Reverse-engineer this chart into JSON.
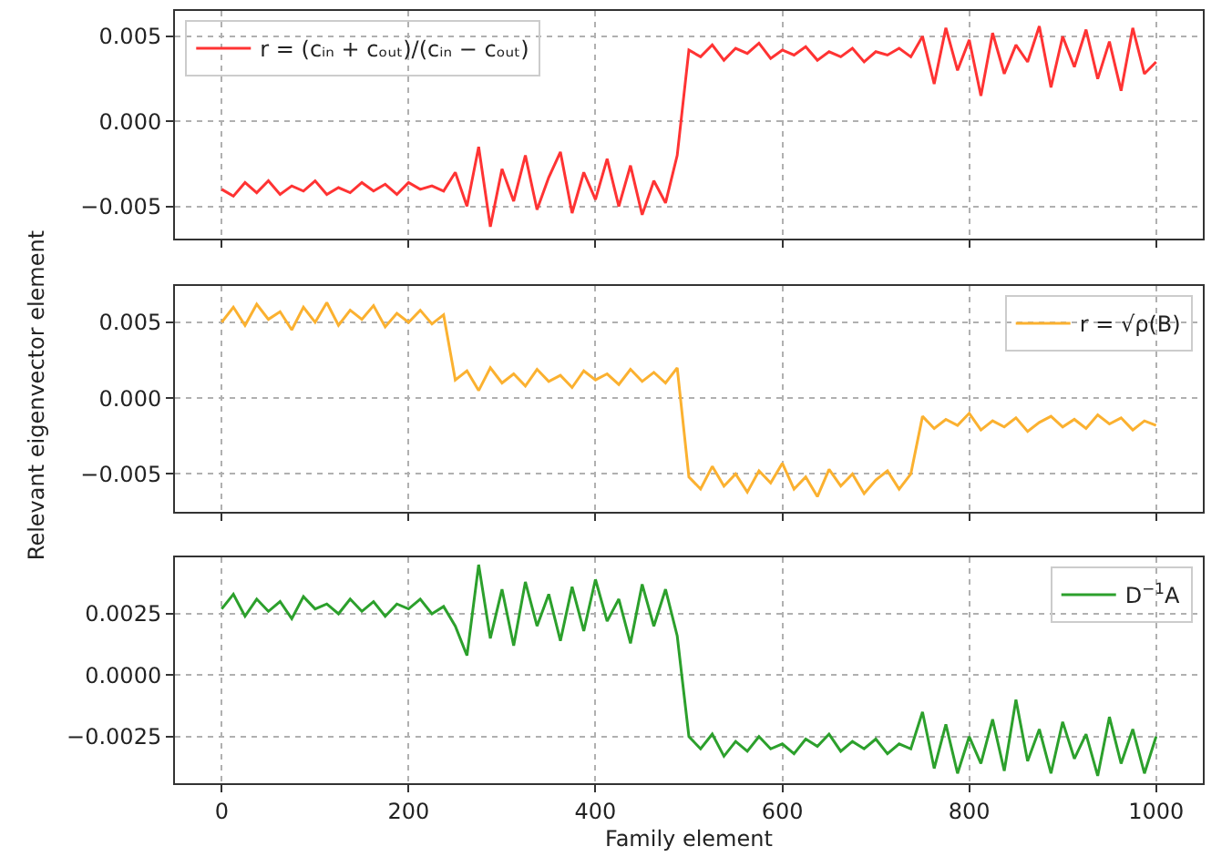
{
  "chart_data": [
    {
      "type": "line",
      "x": [
        0,
        12.5,
        25,
        37.5,
        50,
        62.5,
        75,
        87.5,
        100,
        112.5,
        125,
        137.5,
        150,
        162.5,
        175,
        187.5,
        200,
        212.5,
        225,
        237.5,
        250,
        262.5,
        275,
        287.5,
        300,
        312.5,
        325,
        337.5,
        350,
        362.5,
        375,
        387.5,
        400,
        412.5,
        425,
        437.5,
        450,
        462.5,
        475,
        487.5,
        500,
        512.5,
        525,
        537.5,
        550,
        562.5,
        575,
        587.5,
        600,
        612.5,
        625,
        637.5,
        650,
        662.5,
        675,
        687.5,
        700,
        712.5,
        725,
        737.5,
        750,
        762.5,
        775,
        787.5,
        800,
        812.5,
        825,
        837.5,
        850,
        862.5,
        875,
        887.5,
        900,
        912.5,
        925,
        937.5,
        950,
        962.5,
        975,
        987.5,
        1000
      ],
      "series": [
        {
          "name": "r = (cᵢₙ + cₒᵤₜ)/(cᵢₙ − cₒᵤₜ)",
          "color": "#ff3333",
          "values": [
            -0.004,
            -0.0044,
            -0.0036,
            -0.0042,
            -0.0035,
            -0.0043,
            -0.0038,
            -0.0041,
            -0.0035,
            -0.0043,
            -0.0039,
            -0.0042,
            -0.0036,
            -0.0041,
            -0.0037,
            -0.0043,
            -0.0036,
            -0.004,
            -0.0038,
            -0.0041,
            -0.003,
            -0.005,
            -0.0015,
            -0.0062,
            -0.0028,
            -0.0047,
            -0.002,
            -0.0052,
            -0.0033,
            -0.0018,
            -0.0054,
            -0.003,
            -0.0046,
            -0.0022,
            -0.005,
            -0.0026,
            -0.0055,
            -0.0035,
            -0.0048,
            -0.002,
            0.0042,
            0.0038,
            0.0045,
            0.0036,
            0.0043,
            0.004,
            0.0046,
            0.0037,
            0.0042,
            0.0039,
            0.0044,
            0.0036,
            0.0041,
            0.0038,
            0.0043,
            0.0035,
            0.0041,
            0.0039,
            0.0043,
            0.0038,
            0.005,
            0.0022,
            0.0055,
            0.003,
            0.0048,
            0.0015,
            0.0052,
            0.0028,
            0.0045,
            0.0035,
            0.0056,
            0.002,
            0.005,
            0.0032,
            0.0054,
            0.0025,
            0.0047,
            0.0018,
            0.0055,
            0.0028,
            0.0035
          ]
        }
      ],
      "xlim": [
        -50,
        1050
      ],
      "ylim": [
        -0.0069,
        0.0065
      ],
      "yticks": [
        {
          "value": -0.005,
          "label": "−0.005"
        },
        {
          "value": 0,
          "label": "0.000"
        },
        {
          "value": 0.005,
          "label": "0.005"
        }
      ],
      "xticks": [
        {
          "value": 0,
          "label": null
        },
        {
          "value": 200,
          "label": null
        },
        {
          "value": 400,
          "label": null
        },
        {
          "value": 600,
          "label": null
        },
        {
          "value": 800,
          "label": null
        },
        {
          "value": 1000,
          "label": null
        }
      ],
      "grid": true,
      "legend": "top left",
      "tick_labels": "y",
      "line_style": "solid"
    },
    {
      "type": "line",
      "ylabel": "Relevant eigenvector element",
      "x": [
        0,
        12.5,
        25,
        37.5,
        50,
        62.5,
        75,
        87.5,
        100,
        112.5,
        125,
        137.5,
        150,
        162.5,
        175,
        187.5,
        200,
        212.5,
        225,
        237.5,
        250,
        262.5,
        275,
        287.5,
        300,
        312.5,
        325,
        337.5,
        350,
        362.5,
        375,
        387.5,
        400,
        412.5,
        425,
        437.5,
        450,
        462.5,
        475,
        487.5,
        500,
        512.5,
        525,
        537.5,
        550,
        562.5,
        575,
        587.5,
        600,
        612.5,
        625,
        637.5,
        650,
        662.5,
        675,
        687.5,
        700,
        712.5,
        725,
        737.5,
        750,
        762.5,
        775,
        787.5,
        800,
        812.5,
        825,
        837.5,
        850,
        862.5,
        875,
        887.5,
        900,
        912.5,
        925,
        937.5,
        950,
        962.5,
        975,
        987.5,
        1000
      ],
      "series": [
        {
          "name": "r = √ρ(B)",
          "color": "#fbb130",
          "values": [
            0.005,
            0.006,
            0.0048,
            0.0062,
            0.0052,
            0.0057,
            0.0045,
            0.006,
            0.005,
            0.0063,
            0.0048,
            0.0058,
            0.0052,
            0.0061,
            0.0047,
            0.0056,
            0.005,
            0.0058,
            0.0049,
            0.0055,
            0.0012,
            0.0018,
            0.0005,
            0.002,
            0.001,
            0.0016,
            0.0008,
            0.0019,
            0.0011,
            0.0015,
            0.0007,
            0.0018,
            0.0012,
            0.0016,
            0.0009,
            0.0019,
            0.0011,
            0.0017,
            0.001,
            0.002,
            -0.0052,
            -0.006,
            -0.0045,
            -0.0058,
            -0.005,
            -0.0062,
            -0.0048,
            -0.0056,
            -0.0043,
            -0.006,
            -0.0052,
            -0.0065,
            -0.0047,
            -0.0058,
            -0.005,
            -0.0063,
            -0.0054,
            -0.0048,
            -0.006,
            -0.005,
            -0.0012,
            -0.002,
            -0.0014,
            -0.0018,
            -0.001,
            -0.0021,
            -0.0015,
            -0.0019,
            -0.0013,
            -0.0022,
            -0.0016,
            -0.0012,
            -0.0019,
            -0.0014,
            -0.002,
            -0.0011,
            -0.0017,
            -0.0013,
            -0.0021,
            -0.0015,
            -0.0018
          ]
        }
      ],
      "xlim": [
        -50,
        1050
      ],
      "ylim": [
        -0.0075,
        0.0074
      ],
      "yticks": [
        {
          "value": -0.005,
          "label": "−0.005"
        },
        {
          "value": 0,
          "label": "0.000"
        },
        {
          "value": 0.005,
          "label": "0.005"
        }
      ],
      "xticks": [
        {
          "value": 0,
          "label": null
        },
        {
          "value": 200,
          "label": null
        },
        {
          "value": 400,
          "label": null
        },
        {
          "value": 600,
          "label": null
        },
        {
          "value": 800,
          "label": null
        },
        {
          "value": 1000,
          "label": null
        }
      ],
      "grid": true,
      "legend": "top right",
      "tick_labels": "y",
      "line_style": "solid"
    },
    {
      "type": "line",
      "xlabel": "Family element",
      "x": [
        0,
        12.5,
        25,
        37.5,
        50,
        62.5,
        75,
        87.5,
        100,
        112.5,
        125,
        137.5,
        150,
        162.5,
        175,
        187.5,
        200,
        212.5,
        225,
        237.5,
        250,
        262.5,
        275,
        287.5,
        300,
        312.5,
        325,
        337.5,
        350,
        362.5,
        375,
        387.5,
        400,
        412.5,
        425,
        437.5,
        450,
        462.5,
        475,
        487.5,
        500,
        512.5,
        525,
        537.5,
        550,
        562.5,
        575,
        587.5,
        600,
        612.5,
        625,
        637.5,
        650,
        662.5,
        675,
        687.5,
        700,
        712.5,
        725,
        737.5,
        750,
        762.5,
        775,
        787.5,
        800,
        812.5,
        825,
        837.5,
        850,
        862.5,
        875,
        887.5,
        900,
        912.5,
        925,
        937.5,
        950,
        962.5,
        975,
        987.5,
        1000
      ],
      "series": [
        {
          "name": "D$^{−1}$A",
          "color": "#2ca02c",
          "values": [
            0.0027,
            0.0033,
            0.0024,
            0.0031,
            0.0026,
            0.003,
            0.0023,
            0.0032,
            0.0027,
            0.0029,
            0.0025,
            0.0031,
            0.0026,
            0.003,
            0.0024,
            0.0029,
            0.0027,
            0.0031,
            0.0025,
            0.0028,
            0.002,
            0.0008,
            0.0045,
            0.0015,
            0.0035,
            0.0012,
            0.0038,
            0.002,
            0.0033,
            0.0014,
            0.0036,
            0.0018,
            0.0039,
            0.0022,
            0.0031,
            0.0013,
            0.0037,
            0.002,
            0.0035,
            0.0016,
            -0.0025,
            -0.003,
            -0.0024,
            -0.0033,
            -0.0027,
            -0.0031,
            -0.0025,
            -0.003,
            -0.0028,
            -0.0032,
            -0.0026,
            -0.0029,
            -0.0024,
            -0.0031,
            -0.0027,
            -0.003,
            -0.0026,
            -0.0032,
            -0.0028,
            -0.003,
            -0.0015,
            -0.0038,
            -0.002,
            -0.004,
            -0.0025,
            -0.0036,
            -0.0018,
            -0.0039,
            -0.001,
            -0.0035,
            -0.0022,
            -0.004,
            -0.0019,
            -0.0034,
            -0.0024,
            -0.0041,
            -0.0017,
            -0.0036,
            -0.0022,
            -0.004,
            -0.0025
          ]
        }
      ],
      "xlim": [
        -50,
        1050
      ],
      "ylim": [
        -0.0044,
        0.0048
      ],
      "yticks": [
        {
          "value": -0.0025,
          "label": "−0.0025"
        },
        {
          "value": 0,
          "label": "0.0000"
        },
        {
          "value": 0.0025,
          "label": "0.0025"
        }
      ],
      "xticks": [
        0,
        200,
        400,
        600,
        800,
        1000
      ],
      "grid": true,
      "legend": "top right",
      "line_style": "solid"
    }
  ]
}
